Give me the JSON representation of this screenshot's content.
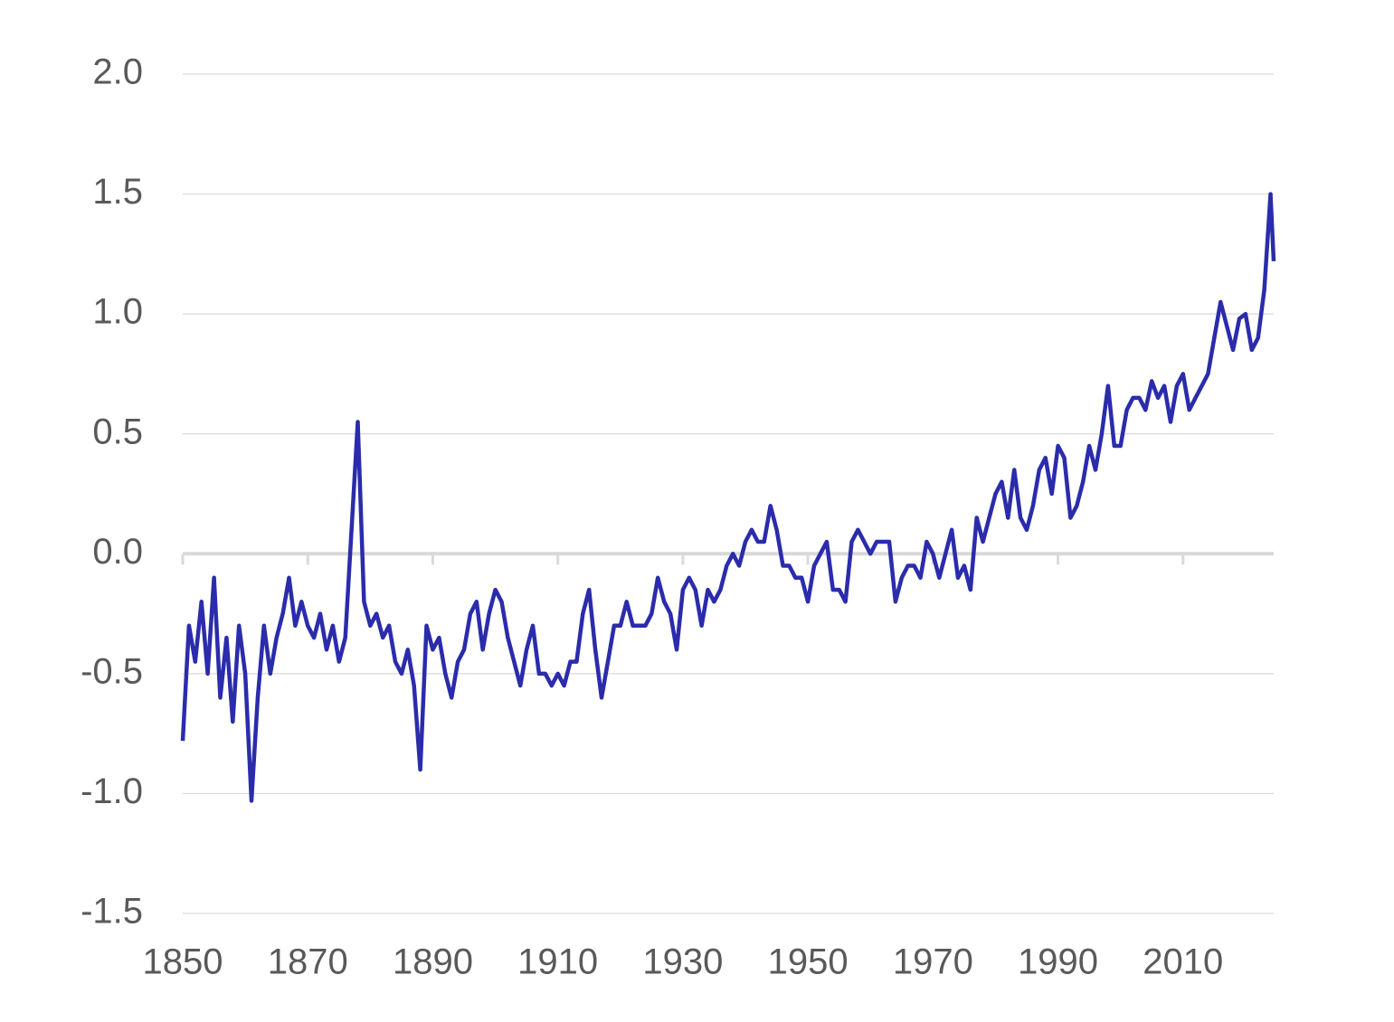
{
  "chart_data": {
    "type": "line",
    "x": [
      1850,
      1851,
      1852,
      1853,
      1854,
      1855,
      1856,
      1857,
      1858,
      1859,
      1860,
      1861,
      1862,
      1863,
      1864,
      1865,
      1866,
      1867,
      1868,
      1869,
      1870,
      1871,
      1872,
      1873,
      1874,
      1875,
      1876,
      1877,
      1878,
      1879,
      1880,
      1881,
      1882,
      1883,
      1884,
      1885,
      1886,
      1887,
      1888,
      1889,
      1890,
      1891,
      1892,
      1893,
      1894,
      1895,
      1896,
      1897,
      1898,
      1899,
      1900,
      1901,
      1902,
      1903,
      1904,
      1905,
      1906,
      1907,
      1908,
      1909,
      1910,
      1911,
      1912,
      1913,
      1914,
      1915,
      1916,
      1917,
      1918,
      1919,
      1920,
      1921,
      1922,
      1923,
      1924,
      1925,
      1926,
      1927,
      1928,
      1929,
      1930,
      1931,
      1932,
      1933,
      1934,
      1935,
      1936,
      1937,
      1938,
      1939,
      1940,
      1941,
      1942,
      1943,
      1944,
      1945,
      1946,
      1947,
      1948,
      1949,
      1950,
      1951,
      1952,
      1953,
      1954,
      1955,
      1956,
      1957,
      1958,
      1959,
      1960,
      1961,
      1962,
      1963,
      1964,
      1965,
      1966,
      1967,
      1968,
      1969,
      1970,
      1971,
      1972,
      1973,
      1974,
      1975,
      1976,
      1977,
      1978,
      1979,
      1980,
      1981,
      1982,
      1983,
      1984,
      1985,
      1986,
      1987,
      1988,
      1989,
      1990,
      1991,
      1992,
      1993,
      1994,
      1995,
      1996,
      1997,
      1998,
      1999,
      2000,
      2001,
      2002,
      2003,
      2004,
      2005,
      2006,
      2007,
      2008,
      2009,
      2010,
      2011,
      2012,
      2013,
      2014,
      2015,
      2016,
      2017,
      2018,
      2019,
      2020,
      2021,
      2022,
      2023,
      2024,
      2024.5
    ],
    "series": [
      {
        "color": "#2b2cab",
        "values": [
          -0.78,
          -0.3,
          -0.45,
          -0.2,
          -0.5,
          -0.1,
          -0.6,
          -0.35,
          -0.7,
          -0.3,
          -0.5,
          -1.03,
          -0.6,
          -0.3,
          -0.5,
          -0.35,
          -0.25,
          -0.1,
          -0.3,
          -0.2,
          -0.3,
          -0.35,
          -0.25,
          -0.4,
          -0.3,
          -0.45,
          -0.35,
          0.1,
          0.55,
          -0.2,
          -0.3,
          -0.25,
          -0.35,
          -0.3,
          -0.45,
          -0.5,
          -0.4,
          -0.55,
          -0.9,
          -0.3,
          -0.4,
          -0.35,
          -0.5,
          -0.6,
          -0.45,
          -0.4,
          -0.25,
          -0.2,
          -0.4,
          -0.25,
          -0.15,
          -0.2,
          -0.35,
          -0.45,
          -0.55,
          -0.4,
          -0.3,
          -0.5,
          -0.5,
          -0.55,
          -0.5,
          -0.55,
          -0.45,
          -0.45,
          -0.25,
          -0.15,
          -0.4,
          -0.6,
          -0.45,
          -0.3,
          -0.3,
          -0.2,
          -0.3,
          -0.3,
          -0.3,
          -0.25,
          -0.1,
          -0.2,
          -0.25,
          -0.4,
          -0.15,
          -0.1,
          -0.15,
          -0.3,
          -0.15,
          -0.2,
          -0.15,
          -0.05,
          0.0,
          -0.05,
          0.05,
          0.1,
          0.05,
          0.05,
          0.2,
          0.1,
          -0.05,
          -0.05,
          -0.1,
          -0.1,
          -0.2,
          -0.05,
          0.0,
          0.05,
          -0.15,
          -0.15,
          -0.2,
          0.05,
          0.1,
          0.05,
          0.0,
          0.05,
          0.05,
          0.05,
          -0.2,
          -0.1,
          -0.05,
          -0.05,
          -0.1,
          0.05,
          0.0,
          -0.1,
          0.0,
          0.1,
          -0.1,
          -0.05,
          -0.15,
          0.15,
          0.05,
          0.15,
          0.25,
          0.3,
          0.15,
          0.35,
          0.15,
          0.1,
          0.2,
          0.35,
          0.4,
          0.25,
          0.45,
          0.4,
          0.15,
          0.2,
          0.3,
          0.45,
          0.35,
          0.5,
          0.7,
          0.45,
          0.45,
          0.6,
          0.65,
          0.65,
          0.6,
          0.72,
          0.65,
          0.7,
          0.55,
          0.7,
          0.75,
          0.6,
          0.65,
          0.7,
          0.75,
          0.9,
          1.05,
          0.95,
          0.85,
          0.98,
          1.0,
          0.85,
          0.9,
          1.1,
          1.5,
          1.22
        ]
      }
    ],
    "xlim": [
      1850,
      2024.5
    ],
    "xticks": [
      1850,
      1870,
      1890,
      1910,
      1930,
      1950,
      1970,
      1990,
      2010
    ],
    "ylim": [
      -1.5,
      2.0
    ],
    "yticks": [
      {
        "value": 2.0,
        "label": "2.0"
      },
      1.5,
      {
        "value": 1.0,
        "label": "1.0"
      },
      0.5,
      {
        "value": 0.0,
        "label": "0.0"
      },
      -0.5,
      {
        "value": -1.0,
        "label": "-1.0"
      },
      -1.5
    ],
    "grid": true
  }
}
